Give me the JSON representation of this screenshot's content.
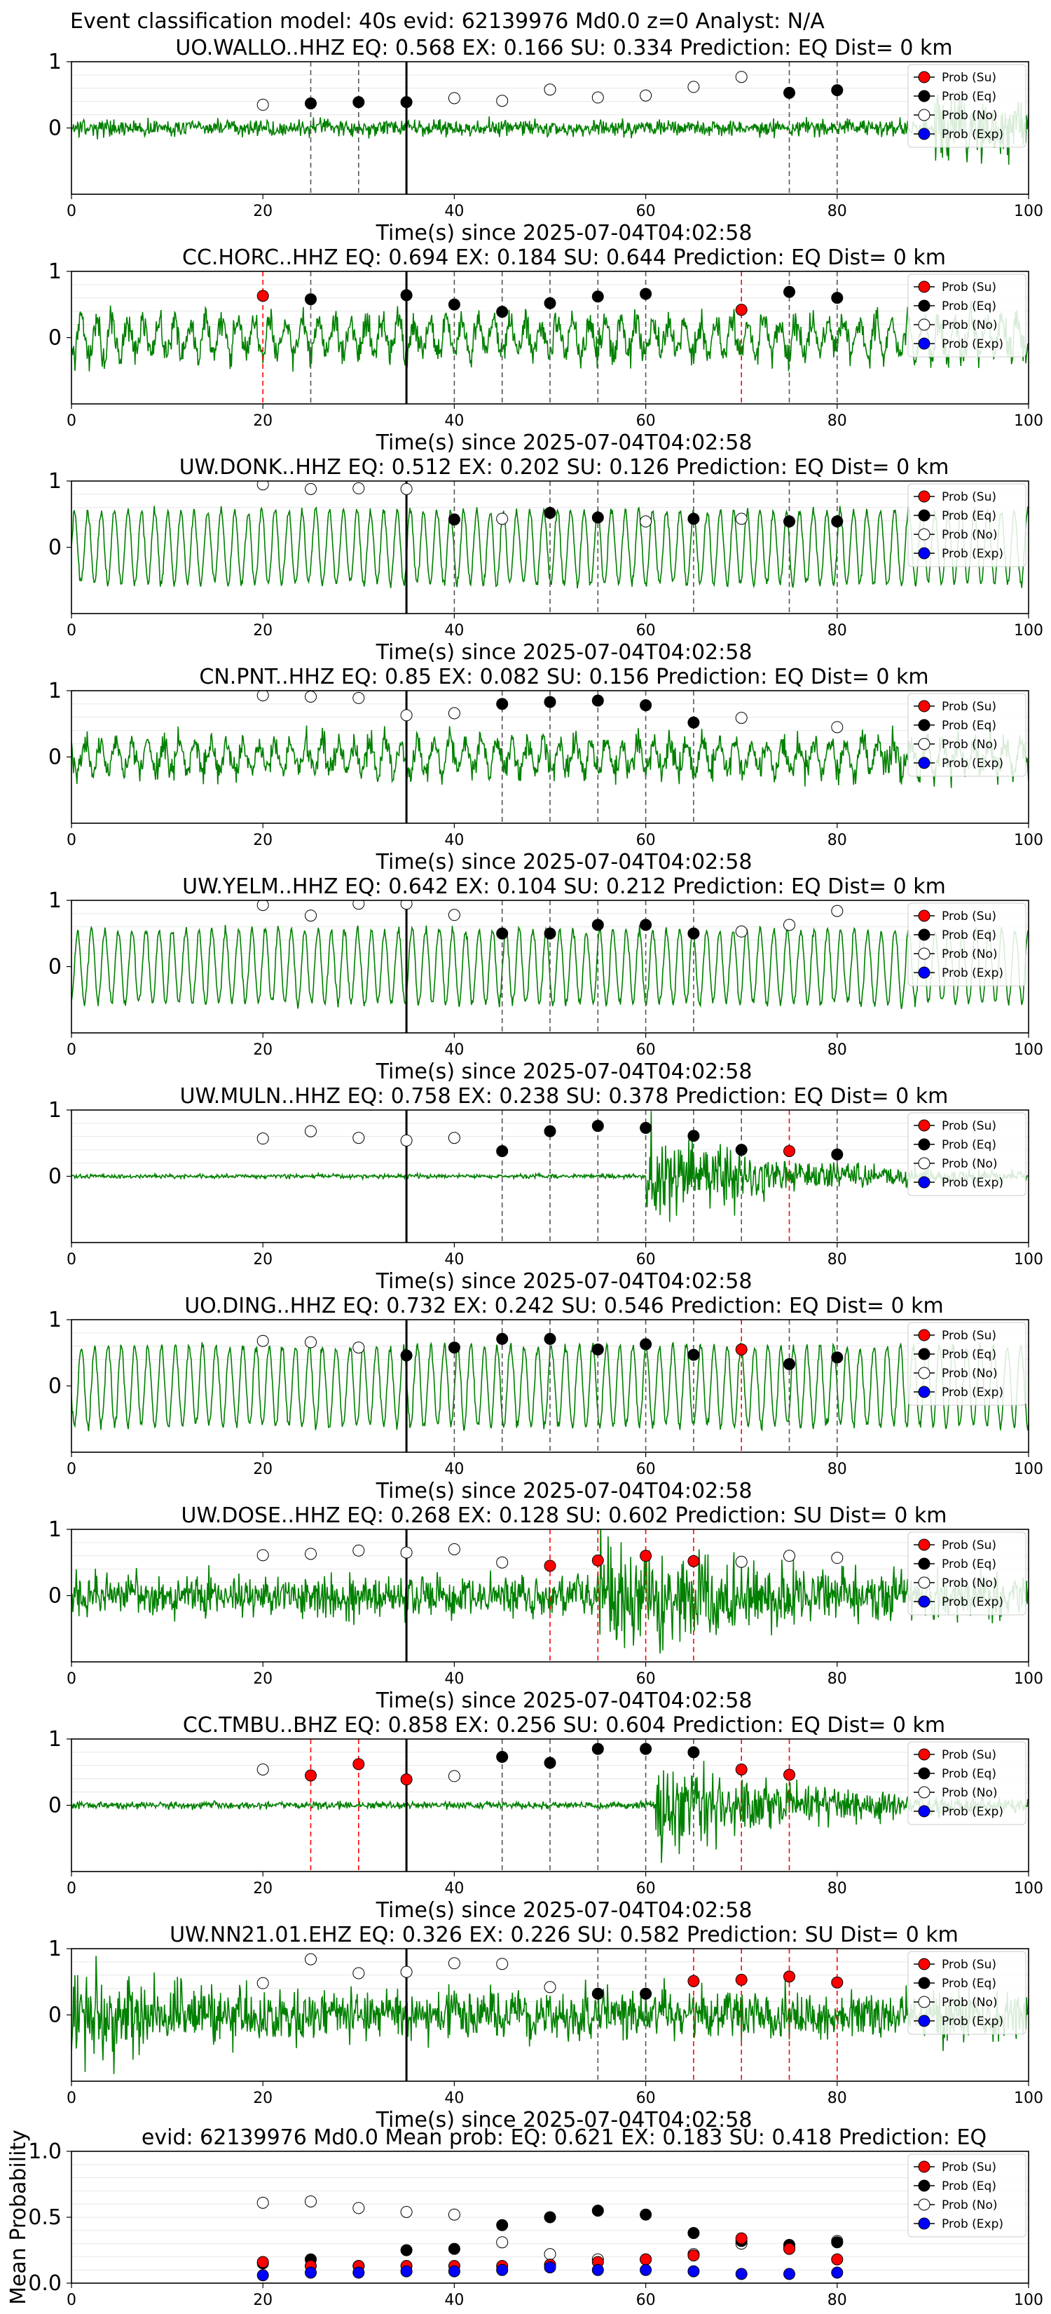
{
  "figure": {
    "suptitle": "Event classification model: 40s evid: 62139976 Md0.0 z=0 Analyst: N/A"
  },
  "colors": {
    "waveform": "#008000",
    "su": "#ff0000",
    "eq": "#000000",
    "no": "#ffffff",
    "exp": "#0000ff",
    "eq_line": "#555555",
    "su_line": "#ff0000"
  },
  "legend_labels": [
    "Prob (Su)",
    "Prob (Eq)",
    "Prob (No)",
    "Prob (Exp)"
  ],
  "chart_data": [
    {
      "type": "line",
      "title": "UO.WALLO..HHZ   EQ: 0.568  EX: 0.166  SU: 0.334   Prediction: EQ    Dist= 0 km",
      "xlabel": "Time(s) since 2025-07-04T04:02:58",
      "xlim": [
        0,
        100
      ],
      "ylim": [
        -1,
        1
      ],
      "xticks": [
        0,
        20,
        40,
        60,
        80,
        100
      ],
      "yticks": [
        0,
        1
      ],
      "grid": "horizontal",
      "legend": "right",
      "p_marker": 35,
      "waveform": {
        "amp": 0.12,
        "style": "noise",
        "loud_after": 90,
        "loud_amp": 0.45
      },
      "points": [
        {
          "x": 20,
          "y": 0.35,
          "cls": "no"
        },
        {
          "x": 25,
          "y": 0.37,
          "cls": "eq"
        },
        {
          "x": 30,
          "y": 0.39,
          "cls": "eq"
        },
        {
          "x": 35,
          "y": 0.39,
          "cls": "eq"
        },
        {
          "x": 40,
          "y": 0.45,
          "cls": "no"
        },
        {
          "x": 45,
          "y": 0.41,
          "cls": "no"
        },
        {
          "x": 50,
          "y": 0.58,
          "cls": "no"
        },
        {
          "x": 55,
          "y": 0.46,
          "cls": "no"
        },
        {
          "x": 60,
          "y": 0.49,
          "cls": "no"
        },
        {
          "x": 65,
          "y": 0.62,
          "cls": "no"
        },
        {
          "x": 70,
          "y": 0.77,
          "cls": "no"
        },
        {
          "x": 75,
          "y": 0.53,
          "cls": "eq"
        },
        {
          "x": 80,
          "y": 0.57,
          "cls": "eq"
        }
      ]
    },
    {
      "type": "line",
      "title": "CC.HORC..HHZ   EQ: 0.694  EX: 0.184  SU: 0.644   Prediction: EQ    Dist= 0 km",
      "xlabel": "Time(s) since 2025-07-04T04:02:58",
      "xlim": [
        0,
        100
      ],
      "ylim": [
        -1,
        1
      ],
      "xticks": [
        0,
        20,
        40,
        60,
        80,
        100
      ],
      "yticks": [
        0,
        1
      ],
      "grid": "horizontal",
      "legend": "right",
      "p_marker": 35,
      "waveform": {
        "amp": 0.45,
        "style": "mixed"
      },
      "points": [
        {
          "x": 20,
          "y": 0.63,
          "cls": "su"
        },
        {
          "x": 25,
          "y": 0.58,
          "cls": "eq"
        },
        {
          "x": 35,
          "y": 0.64,
          "cls": "eq"
        },
        {
          "x": 40,
          "y": 0.5,
          "cls": "eq"
        },
        {
          "x": 45,
          "y": 0.39,
          "cls": "eq"
        },
        {
          "x": 50,
          "y": 0.52,
          "cls": "eq"
        },
        {
          "x": 55,
          "y": 0.62,
          "cls": "eq"
        },
        {
          "x": 60,
          "y": 0.66,
          "cls": "eq"
        },
        {
          "x": 70,
          "y": 0.42,
          "cls": "su"
        },
        {
          "x": 75,
          "y": 0.69,
          "cls": "eq"
        },
        {
          "x": 80,
          "y": 0.6,
          "cls": "eq"
        }
      ]
    },
    {
      "type": "line",
      "title": "UW.DONK..HHZ   EQ: 0.512  EX: 0.202  SU: 0.126   Prediction: EQ    Dist= 0 km",
      "xlabel": "Time(s) since 2025-07-04T04:02:58",
      "xlim": [
        0,
        100
      ],
      "ylim": [
        -1,
        1
      ],
      "xticks": [
        0,
        20,
        40,
        60,
        80,
        100
      ],
      "yticks": [
        0,
        1
      ],
      "grid": "horizontal",
      "legend": "right",
      "p_marker": 35,
      "waveform": {
        "amp": 0.55,
        "style": "wave"
      },
      "points": [
        {
          "x": 20,
          "y": 0.95,
          "cls": "no"
        },
        {
          "x": 25,
          "y": 0.88,
          "cls": "no"
        },
        {
          "x": 30,
          "y": 0.89,
          "cls": "no"
        },
        {
          "x": 35,
          "y": 0.88,
          "cls": "no"
        },
        {
          "x": 40,
          "y": 0.42,
          "cls": "eq"
        },
        {
          "x": 45,
          "y": 0.43,
          "cls": "no"
        },
        {
          "x": 50,
          "y": 0.52,
          "cls": "eq"
        },
        {
          "x": 55,
          "y": 0.45,
          "cls": "eq"
        },
        {
          "x": 60,
          "y": 0.39,
          "cls": "no"
        },
        {
          "x": 65,
          "y": 0.43,
          "cls": "eq"
        },
        {
          "x": 70,
          "y": 0.43,
          "cls": "no"
        },
        {
          "x": 75,
          "y": 0.39,
          "cls": "eq"
        },
        {
          "x": 80,
          "y": 0.39,
          "cls": "eq"
        }
      ]
    },
    {
      "type": "line",
      "title": "CN.PNT..HHZ   EQ: 0.85  EX: 0.082  SU: 0.156   Prediction: EQ    Dist= 0 km",
      "xlabel": "Time(s) since 2025-07-04T04:02:58",
      "xlim": [
        0,
        100
      ],
      "ylim": [
        -1,
        1
      ],
      "xticks": [
        0,
        20,
        40,
        60,
        80,
        100
      ],
      "yticks": [
        0,
        1
      ],
      "grid": "horizontal",
      "legend": "right",
      "p_marker": 35,
      "waveform": {
        "amp": 0.4,
        "style": "mixed"
      },
      "points": [
        {
          "x": 20,
          "y": 0.93,
          "cls": "no"
        },
        {
          "x": 25,
          "y": 0.91,
          "cls": "no"
        },
        {
          "x": 30,
          "y": 0.89,
          "cls": "no"
        },
        {
          "x": 35,
          "y": 0.63,
          "cls": "no"
        },
        {
          "x": 40,
          "y": 0.66,
          "cls": "no"
        },
        {
          "x": 45,
          "y": 0.8,
          "cls": "eq"
        },
        {
          "x": 50,
          "y": 0.83,
          "cls": "eq"
        },
        {
          "x": 55,
          "y": 0.85,
          "cls": "eq"
        },
        {
          "x": 60,
          "y": 0.78,
          "cls": "eq"
        },
        {
          "x": 65,
          "y": 0.52,
          "cls": "eq"
        },
        {
          "x": 70,
          "y": 0.59,
          "cls": "no"
        },
        {
          "x": 80,
          "y": 0.45,
          "cls": "no"
        }
      ]
    },
    {
      "type": "line",
      "title": "UW.YELM..HHZ   EQ: 0.642  EX: 0.104  SU: 0.212   Prediction: EQ    Dist= 0 km",
      "xlabel": "Time(s) since 2025-07-04T04:02:58",
      "xlim": [
        0,
        100
      ],
      "ylim": [
        -1,
        1
      ],
      "xticks": [
        0,
        20,
        40,
        60,
        80,
        100
      ],
      "yticks": [
        0,
        1
      ],
      "grid": "horizontal",
      "legend": "right",
      "p_marker": 35,
      "waveform": {
        "amp": 0.55,
        "style": "wave"
      },
      "points": [
        {
          "x": 20,
          "y": 0.93,
          "cls": "no"
        },
        {
          "x": 25,
          "y": 0.77,
          "cls": "no"
        },
        {
          "x": 30,
          "y": 0.95,
          "cls": "no"
        },
        {
          "x": 35,
          "y": 0.95,
          "cls": "no"
        },
        {
          "x": 40,
          "y": 0.78,
          "cls": "no"
        },
        {
          "x": 45,
          "y": 0.5,
          "cls": "eq"
        },
        {
          "x": 50,
          "y": 0.5,
          "cls": "eq"
        },
        {
          "x": 55,
          "y": 0.63,
          "cls": "eq"
        },
        {
          "x": 60,
          "y": 0.63,
          "cls": "eq"
        },
        {
          "x": 65,
          "y": 0.5,
          "cls": "eq"
        },
        {
          "x": 70,
          "y": 0.53,
          "cls": "no"
        },
        {
          "x": 75,
          "y": 0.63,
          "cls": "no"
        },
        {
          "x": 80,
          "y": 0.84,
          "cls": "no"
        }
      ]
    },
    {
      "type": "line",
      "title": "UW.MULN..HHZ   EQ: 0.758  EX: 0.238  SU: 0.378   Prediction: EQ    Dist= 0 km",
      "xlabel": "Time(s) since 2025-07-04T04:02:58",
      "xlim": [
        0,
        100
      ],
      "ylim": [
        -1,
        1
      ],
      "xticks": [
        0,
        20,
        40,
        60,
        80,
        100
      ],
      "yticks": [
        0,
        1
      ],
      "grid": "horizontal",
      "legend": "right",
      "p_marker": 35,
      "waveform": {
        "amp": 0.03,
        "style": "noise",
        "burst_at": 60,
        "burst_amp": 0.7
      },
      "points": [
        {
          "x": 20,
          "y": 0.57,
          "cls": "no"
        },
        {
          "x": 25,
          "y": 0.68,
          "cls": "no"
        },
        {
          "x": 30,
          "y": 0.58,
          "cls": "no"
        },
        {
          "x": 35,
          "y": 0.54,
          "cls": "no"
        },
        {
          "x": 40,
          "y": 0.58,
          "cls": "no"
        },
        {
          "x": 45,
          "y": 0.38,
          "cls": "eq"
        },
        {
          "x": 50,
          "y": 0.68,
          "cls": "eq"
        },
        {
          "x": 55,
          "y": 0.76,
          "cls": "eq"
        },
        {
          "x": 60,
          "y": 0.73,
          "cls": "eq"
        },
        {
          "x": 65,
          "y": 0.61,
          "cls": "eq"
        },
        {
          "x": 70,
          "y": 0.4,
          "cls": "eq"
        },
        {
          "x": 75,
          "y": 0.38,
          "cls": "su"
        },
        {
          "x": 80,
          "y": 0.33,
          "cls": "eq"
        }
      ]
    },
    {
      "type": "line",
      "title": "UO.DING..HHZ   EQ: 0.732  EX: 0.242  SU: 0.546   Prediction: EQ    Dist= 0 km",
      "xlabel": "Time(s) since 2025-07-04T04:02:58",
      "xlim": [
        0,
        100
      ],
      "ylim": [
        -1,
        1
      ],
      "xticks": [
        0,
        20,
        40,
        60,
        80,
        100
      ],
      "yticks": [
        0,
        1
      ],
      "grid": "horizontal",
      "legend": "right",
      "p_marker": 35,
      "waveform": {
        "amp": 0.6,
        "style": "wave"
      },
      "points": [
        {
          "x": 20,
          "y": 0.68,
          "cls": "no"
        },
        {
          "x": 25,
          "y": 0.66,
          "cls": "no"
        },
        {
          "x": 30,
          "y": 0.58,
          "cls": "no"
        },
        {
          "x": 35,
          "y": 0.46,
          "cls": "eq"
        },
        {
          "x": 40,
          "y": 0.58,
          "cls": "eq"
        },
        {
          "x": 45,
          "y": 0.71,
          "cls": "eq"
        },
        {
          "x": 50,
          "y": 0.71,
          "cls": "eq"
        },
        {
          "x": 55,
          "y": 0.55,
          "cls": "eq"
        },
        {
          "x": 60,
          "y": 0.63,
          "cls": "eq"
        },
        {
          "x": 65,
          "y": 0.47,
          "cls": "eq"
        },
        {
          "x": 70,
          "y": 0.55,
          "cls": "su"
        },
        {
          "x": 75,
          "y": 0.33,
          "cls": "eq"
        },
        {
          "x": 80,
          "y": 0.43,
          "cls": "eq"
        }
      ]
    },
    {
      "type": "line",
      "title": "UW.DOSE..HHZ   EQ: 0.268  EX: 0.128  SU: 0.602   Prediction: SU    Dist= 0 km",
      "xlabel": "Time(s) since 2025-07-04T04:02:58",
      "xlim": [
        0,
        100
      ],
      "ylim": [
        -1,
        1
      ],
      "xticks": [
        0,
        20,
        40,
        60,
        80,
        100
      ],
      "yticks": [
        0,
        1
      ],
      "grid": "horizontal",
      "legend": "right",
      "p_marker": 35,
      "waveform": {
        "amp": 0.3,
        "style": "noise",
        "burst_at": 55,
        "burst_amp": 0.6
      },
      "points": [
        {
          "x": 20,
          "y": 0.61,
          "cls": "no"
        },
        {
          "x": 25,
          "y": 0.63,
          "cls": "no"
        },
        {
          "x": 30,
          "y": 0.68,
          "cls": "no"
        },
        {
          "x": 35,
          "y": 0.65,
          "cls": "no"
        },
        {
          "x": 40,
          "y": 0.7,
          "cls": "no"
        },
        {
          "x": 45,
          "y": 0.5,
          "cls": "no"
        },
        {
          "x": 50,
          "y": 0.45,
          "cls": "su"
        },
        {
          "x": 55,
          "y": 0.53,
          "cls": "su"
        },
        {
          "x": 60,
          "y": 0.6,
          "cls": "su"
        },
        {
          "x": 65,
          "y": 0.52,
          "cls": "su"
        },
        {
          "x": 70,
          "y": 0.51,
          "cls": "no"
        },
        {
          "x": 75,
          "y": 0.6,
          "cls": "no"
        },
        {
          "x": 80,
          "y": 0.57,
          "cls": "no"
        }
      ]
    },
    {
      "type": "line",
      "title": "CC.TMBU..BHZ   EQ: 0.858  EX: 0.256  SU: 0.604   Prediction: EQ    Dist= 0 km",
      "xlabel": "Time(s) since 2025-07-04T04:02:58",
      "xlim": [
        0,
        100
      ],
      "ylim": [
        -1,
        1
      ],
      "xticks": [
        0,
        20,
        40,
        60,
        80,
        100
      ],
      "yticks": [
        0,
        1
      ],
      "grid": "horizontal",
      "legend": "right",
      "p_marker": 35,
      "waveform": {
        "amp": 0.05,
        "style": "noise",
        "burst_at": 61,
        "burst_amp": 0.75
      },
      "points": [
        {
          "x": 20,
          "y": 0.54,
          "cls": "no"
        },
        {
          "x": 25,
          "y": 0.45,
          "cls": "su"
        },
        {
          "x": 30,
          "y": 0.62,
          "cls": "su"
        },
        {
          "x": 35,
          "y": 0.39,
          "cls": "su"
        },
        {
          "x": 40,
          "y": 0.44,
          "cls": "no"
        },
        {
          "x": 45,
          "y": 0.73,
          "cls": "eq"
        },
        {
          "x": 50,
          "y": 0.64,
          "cls": "eq"
        },
        {
          "x": 55,
          "y": 0.85,
          "cls": "eq"
        },
        {
          "x": 60,
          "y": 0.85,
          "cls": "eq"
        },
        {
          "x": 65,
          "y": 0.8,
          "cls": "eq"
        },
        {
          "x": 70,
          "y": 0.54,
          "cls": "su"
        },
        {
          "x": 75,
          "y": 0.46,
          "cls": "su"
        }
      ]
    },
    {
      "type": "line",
      "title": "UW.NN21.01.EHZ   EQ: 0.326  EX: 0.226  SU: 0.582   Prediction: SU    Dist= 0 km",
      "xlabel": "Time(s) since 2025-07-04T04:02:58",
      "xlim": [
        0,
        100
      ],
      "ylim": [
        -1,
        1
      ],
      "xticks": [
        0,
        20,
        40,
        60,
        80,
        100
      ],
      "yticks": [
        0,
        1
      ],
      "grid": "horizontal",
      "legend": "right",
      "p_marker": 35,
      "waveform": {
        "amp": 0.35,
        "style": "noise",
        "decay": true
      },
      "points": [
        {
          "x": 20,
          "y": 0.48,
          "cls": "no"
        },
        {
          "x": 25,
          "y": 0.84,
          "cls": "no"
        },
        {
          "x": 30,
          "y": 0.63,
          "cls": "no"
        },
        {
          "x": 35,
          "y": 0.65,
          "cls": "no"
        },
        {
          "x": 40,
          "y": 0.78,
          "cls": "no"
        },
        {
          "x": 45,
          "y": 0.77,
          "cls": "no"
        },
        {
          "x": 50,
          "y": 0.42,
          "cls": "no"
        },
        {
          "x": 55,
          "y": 0.32,
          "cls": "eq"
        },
        {
          "x": 60,
          "y": 0.32,
          "cls": "eq"
        },
        {
          "x": 65,
          "y": 0.51,
          "cls": "su"
        },
        {
          "x": 70,
          "y": 0.53,
          "cls": "su"
        },
        {
          "x": 75,
          "y": 0.58,
          "cls": "su"
        },
        {
          "x": 80,
          "y": 0.49,
          "cls": "su"
        }
      ]
    },
    {
      "type": "scatter",
      "title": "evid: 62139976  Md0.0   Mean prob:   EQ: 0.621  EX: 0.183  SU: 0.418   Prediction: EQ",
      "ylabel": "Mean Probability",
      "xlim": [
        0,
        100
      ],
      "ylim": [
        0,
        1
      ],
      "xticks": [
        0,
        20,
        40,
        60,
        80,
        100
      ],
      "yticks": [
        0.0,
        0.5,
        1.0
      ],
      "ytick_labels": [
        "0.0",
        "0.5",
        "1.0"
      ],
      "grid": "horizontal",
      "legend": "top-right",
      "series": [
        {
          "name": "Prob (No)",
          "cls": "no",
          "x": [
            20,
            25,
            30,
            35,
            40,
            45,
            50,
            55,
            60,
            65,
            70,
            75,
            80
          ],
          "y": [
            0.61,
            0.62,
            0.57,
            0.54,
            0.52,
            0.31,
            0.22,
            0.18,
            0.18,
            0.22,
            0.3,
            0.27,
            0.32
          ]
        },
        {
          "name": "Prob (Eq)",
          "cls": "eq",
          "x": [
            20,
            25,
            30,
            35,
            40,
            45,
            50,
            55,
            60,
            65,
            70,
            75,
            80
          ],
          "y": [
            0.15,
            0.18,
            0.13,
            0.25,
            0.26,
            0.44,
            0.5,
            0.55,
            0.52,
            0.38,
            0.32,
            0.29,
            0.31
          ]
        },
        {
          "name": "Prob (Su)",
          "cls": "su",
          "x": [
            20,
            25,
            30,
            35,
            40,
            45,
            50,
            55,
            60,
            65,
            70,
            75,
            80
          ],
          "y": [
            0.16,
            0.13,
            0.13,
            0.13,
            0.13,
            0.13,
            0.14,
            0.16,
            0.18,
            0.21,
            0.34,
            0.26,
            0.18
          ]
        },
        {
          "name": "Prob (Exp)",
          "cls": "exp",
          "x": [
            20,
            25,
            30,
            35,
            40,
            45,
            50,
            55,
            60,
            65,
            70,
            75,
            80
          ],
          "y": [
            0.06,
            0.08,
            0.08,
            0.09,
            0.09,
            0.1,
            0.12,
            0.1,
            0.1,
            0.09,
            0.07,
            0.07,
            0.08
          ]
        }
      ]
    }
  ]
}
